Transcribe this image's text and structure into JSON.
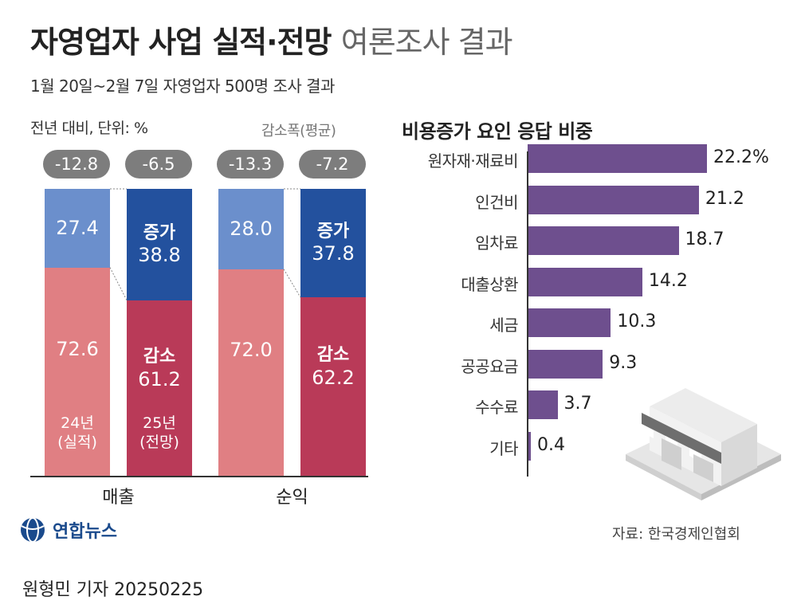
{
  "header": {
    "title_main": "자영업자 사업 실적·전망",
    "title_sub": "여론조사 결과",
    "subtitle": "1월 20일~2월 7일 자영업자 500명 조사 결과",
    "unit_note": "전년 대비, 단위: %",
    "avg_label": "감소폭(평균)"
  },
  "chart_data": [
    {
      "type": "bar",
      "stacked": true,
      "categories": [
        "24년(실적)",
        "25년(전망)",
        "24년(실적)",
        "25년(전망)"
      ],
      "groups": [
        "매출",
        "순익"
      ],
      "series": [
        {
          "name": "증가",
          "values": [
            27.4,
            38.8,
            28.0,
            37.8
          ]
        },
        {
          "name": "감소",
          "values": [
            72.6,
            61.2,
            72.0,
            62.2
          ]
        }
      ],
      "average_decline": [
        "-12.8",
        "-6.5",
        "-13.3",
        "-7.2"
      ],
      "year_labels": [
        [
          "24년",
          "(실적)"
        ],
        [
          "25년",
          "(전망)"
        ]
      ],
      "ylim": [
        0,
        100
      ],
      "colors": {
        "increase_2024": "#6b8fcc",
        "increase_2025": "#23519e",
        "decrease_2024": "#e07f83",
        "decrease_2025": "#b93a58"
      }
    },
    {
      "type": "bar",
      "orientation": "horizontal",
      "title": "비용증가 요인 응답 비중",
      "categories": [
        "원자재·재료비",
        "인건비",
        "임차료",
        "대출상환",
        "세금",
        "공공요금",
        "수수료",
        "기타"
      ],
      "values": [
        22.2,
        21.2,
        18.7,
        14.2,
        10.3,
        9.3,
        3.7,
        0.4
      ],
      "value_labels": [
        "22.2%",
        "21.2",
        "18.7",
        "14.2",
        "10.3",
        "9.3",
        "3.7",
        "0.4"
      ],
      "xlim": [
        0,
        25
      ],
      "color": "#6e4f8e"
    }
  ],
  "footer": {
    "source": "자료: 한국경제인협회",
    "logo_text": "연합뉴스",
    "reporter": "원형민 기자  20250225"
  }
}
